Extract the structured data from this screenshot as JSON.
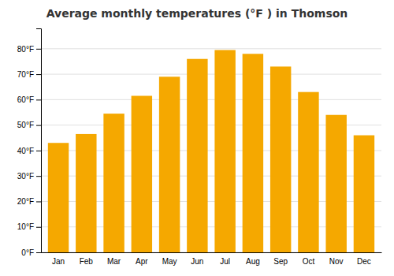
{
  "chart_data": {
    "type": "bar",
    "title": "Average monthly temperatures (°F ) in Thomson",
    "categories": [
      "Jan",
      "Feb",
      "Mar",
      "Apr",
      "May",
      "Jun",
      "Jul",
      "Aug",
      "Sep",
      "Oct",
      "Nov",
      "Dec"
    ],
    "values": [
      43,
      46.5,
      54.5,
      61.5,
      69,
      76,
      79.5,
      78,
      73,
      63,
      54,
      46
    ],
    "color": "#F5A800",
    "ylim": [
      0,
      88
    ],
    "yticks": [
      {
        "value": 0,
        "label": "0°F"
      },
      {
        "value": 10,
        "label": "10°F"
      },
      {
        "value": 20,
        "label": "20°F"
      },
      {
        "value": 30,
        "label": "30°F"
      },
      {
        "value": 40,
        "label": "40°F"
      },
      {
        "value": 50,
        "label": "50°F"
      },
      {
        "value": 60,
        "label": "60°F"
      },
      {
        "value": 70,
        "label": "70°F"
      },
      {
        "value": 80,
        "label": "80°F"
      }
    ],
    "grid": true
  }
}
